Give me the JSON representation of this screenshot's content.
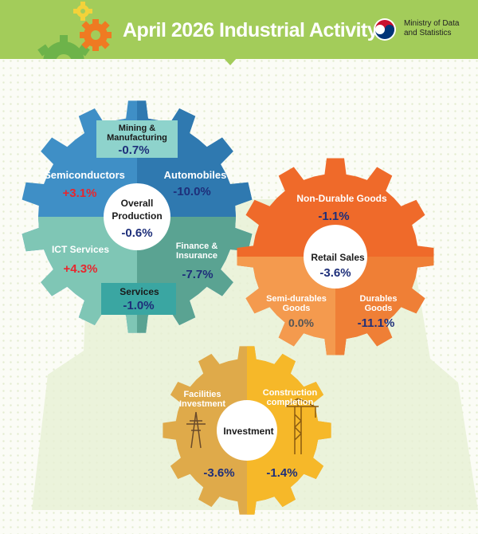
{
  "header": {
    "title": "April 2026 Industrial Activity",
    "ministry": "Ministry of Data\nand Statistics"
  },
  "colors": {
    "header_green": "#a3cc5a",
    "production_blue": "#3f8fc6",
    "production_teal": "#7fc6b5",
    "retail_orange": "#ef6a2a",
    "retail_light": "#f49a4e",
    "investment_tan": "#dfaa4a",
    "investment_yellow": "#f6b829",
    "positive_red": "#e8262e",
    "negative_navy": "#1e2f7a"
  },
  "production": {
    "center_label_1": "Overall",
    "center_label_2": "Production",
    "center_value": "-0.6%",
    "mining_label_1": "Mining &",
    "mining_label_2": "Manufacturing",
    "mining_value": "-0.7%",
    "semiconductors_label": "Semiconductors",
    "semiconductors_value": "+3.1%",
    "automobiles_label": "Automobiles",
    "automobiles_value": "-10.0%",
    "ict_label": "ICT Services",
    "ict_value": "+4.3%",
    "finance_label_1": "Finance &",
    "finance_label_2": "Insurance",
    "finance_value": "-7.7%",
    "services_label": "Services",
    "services_value": "-1.0%"
  },
  "retail": {
    "center_label": "Retail Sales",
    "center_value": "-3.6%",
    "nondurable_label": "Non-Durable Goods",
    "nondurable_value": "-1.1%",
    "semidurable_label_1": "Semi-durables",
    "semidurable_label_2": "Goods",
    "semidurable_value": "0.0%",
    "durable_label_1": "Durables",
    "durable_label_2": "Goods",
    "durable_value": "-11.1%"
  },
  "investment": {
    "center_label": "Investment",
    "facilities_label_1": "Facilities",
    "facilities_label_2": "Investment",
    "facilities_value": "-3.6%",
    "construction_label_1": "Construction",
    "construction_label_2": "completion",
    "construction_value": "-1.4%"
  }
}
